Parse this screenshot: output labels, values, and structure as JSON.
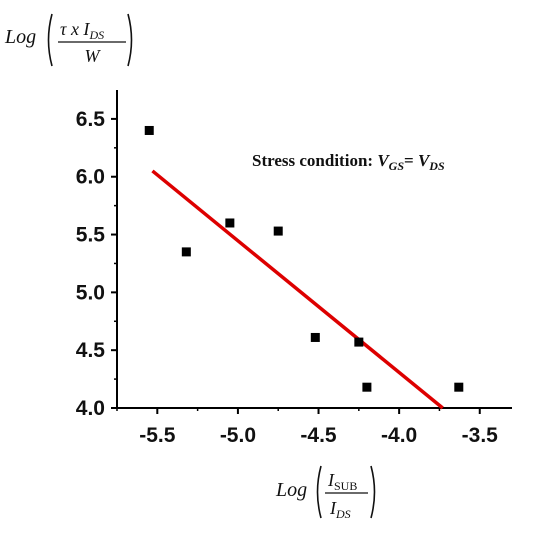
{
  "chart_data": {
    "type": "scatter",
    "title": "",
    "xlabel": {
      "prefix": "Log",
      "numerator_main": "I",
      "numerator_sub": "SUB",
      "denominator_main": "I",
      "denominator_sub": "DS"
    },
    "ylabel": {
      "prefix": "Log",
      "numerator_main": "τ x I",
      "numerator_sub": "DS",
      "denominator_main": "W"
    },
    "xlim": [
      -5.75,
      -3.3
    ],
    "ylim": [
      4.0,
      6.75
    ],
    "x_ticks": [
      "-5.5",
      "-5.0",
      "-4.5",
      "-4.0",
      "-3.5"
    ],
    "x_tick_values": [
      -5.5,
      -5.0,
      -4.5,
      -4.0,
      -3.5
    ],
    "y_ticks": [
      "4.0",
      "4.5",
      "5.0",
      "5.5",
      "6.0",
      "6.5"
    ],
    "y_tick_values": [
      4.0,
      4.5,
      5.0,
      5.5,
      6.0,
      6.5
    ],
    "series": [
      {
        "marker": "square",
        "color": "#000000",
        "x": [
          -5.55,
          -5.32,
          -5.05,
          -4.75,
          -4.52,
          -4.25,
          -4.2,
          -3.63
        ],
        "y": [
          6.4,
          5.35,
          5.6,
          5.53,
          4.61,
          4.57,
          4.18,
          4.18
        ]
      }
    ],
    "fit_line": {
      "color": "#dd0000",
      "x": [
        -5.53,
        -3.73
      ],
      "y": [
        6.05,
        4.0
      ]
    },
    "annotation": {
      "text": "Stress condition: ",
      "v1_main": "V",
      "v1_sub": "GS",
      "eq": "= ",
      "v2_main": "V",
      "v2_sub": "DS"
    },
    "grid": false,
    "legend": "none"
  }
}
